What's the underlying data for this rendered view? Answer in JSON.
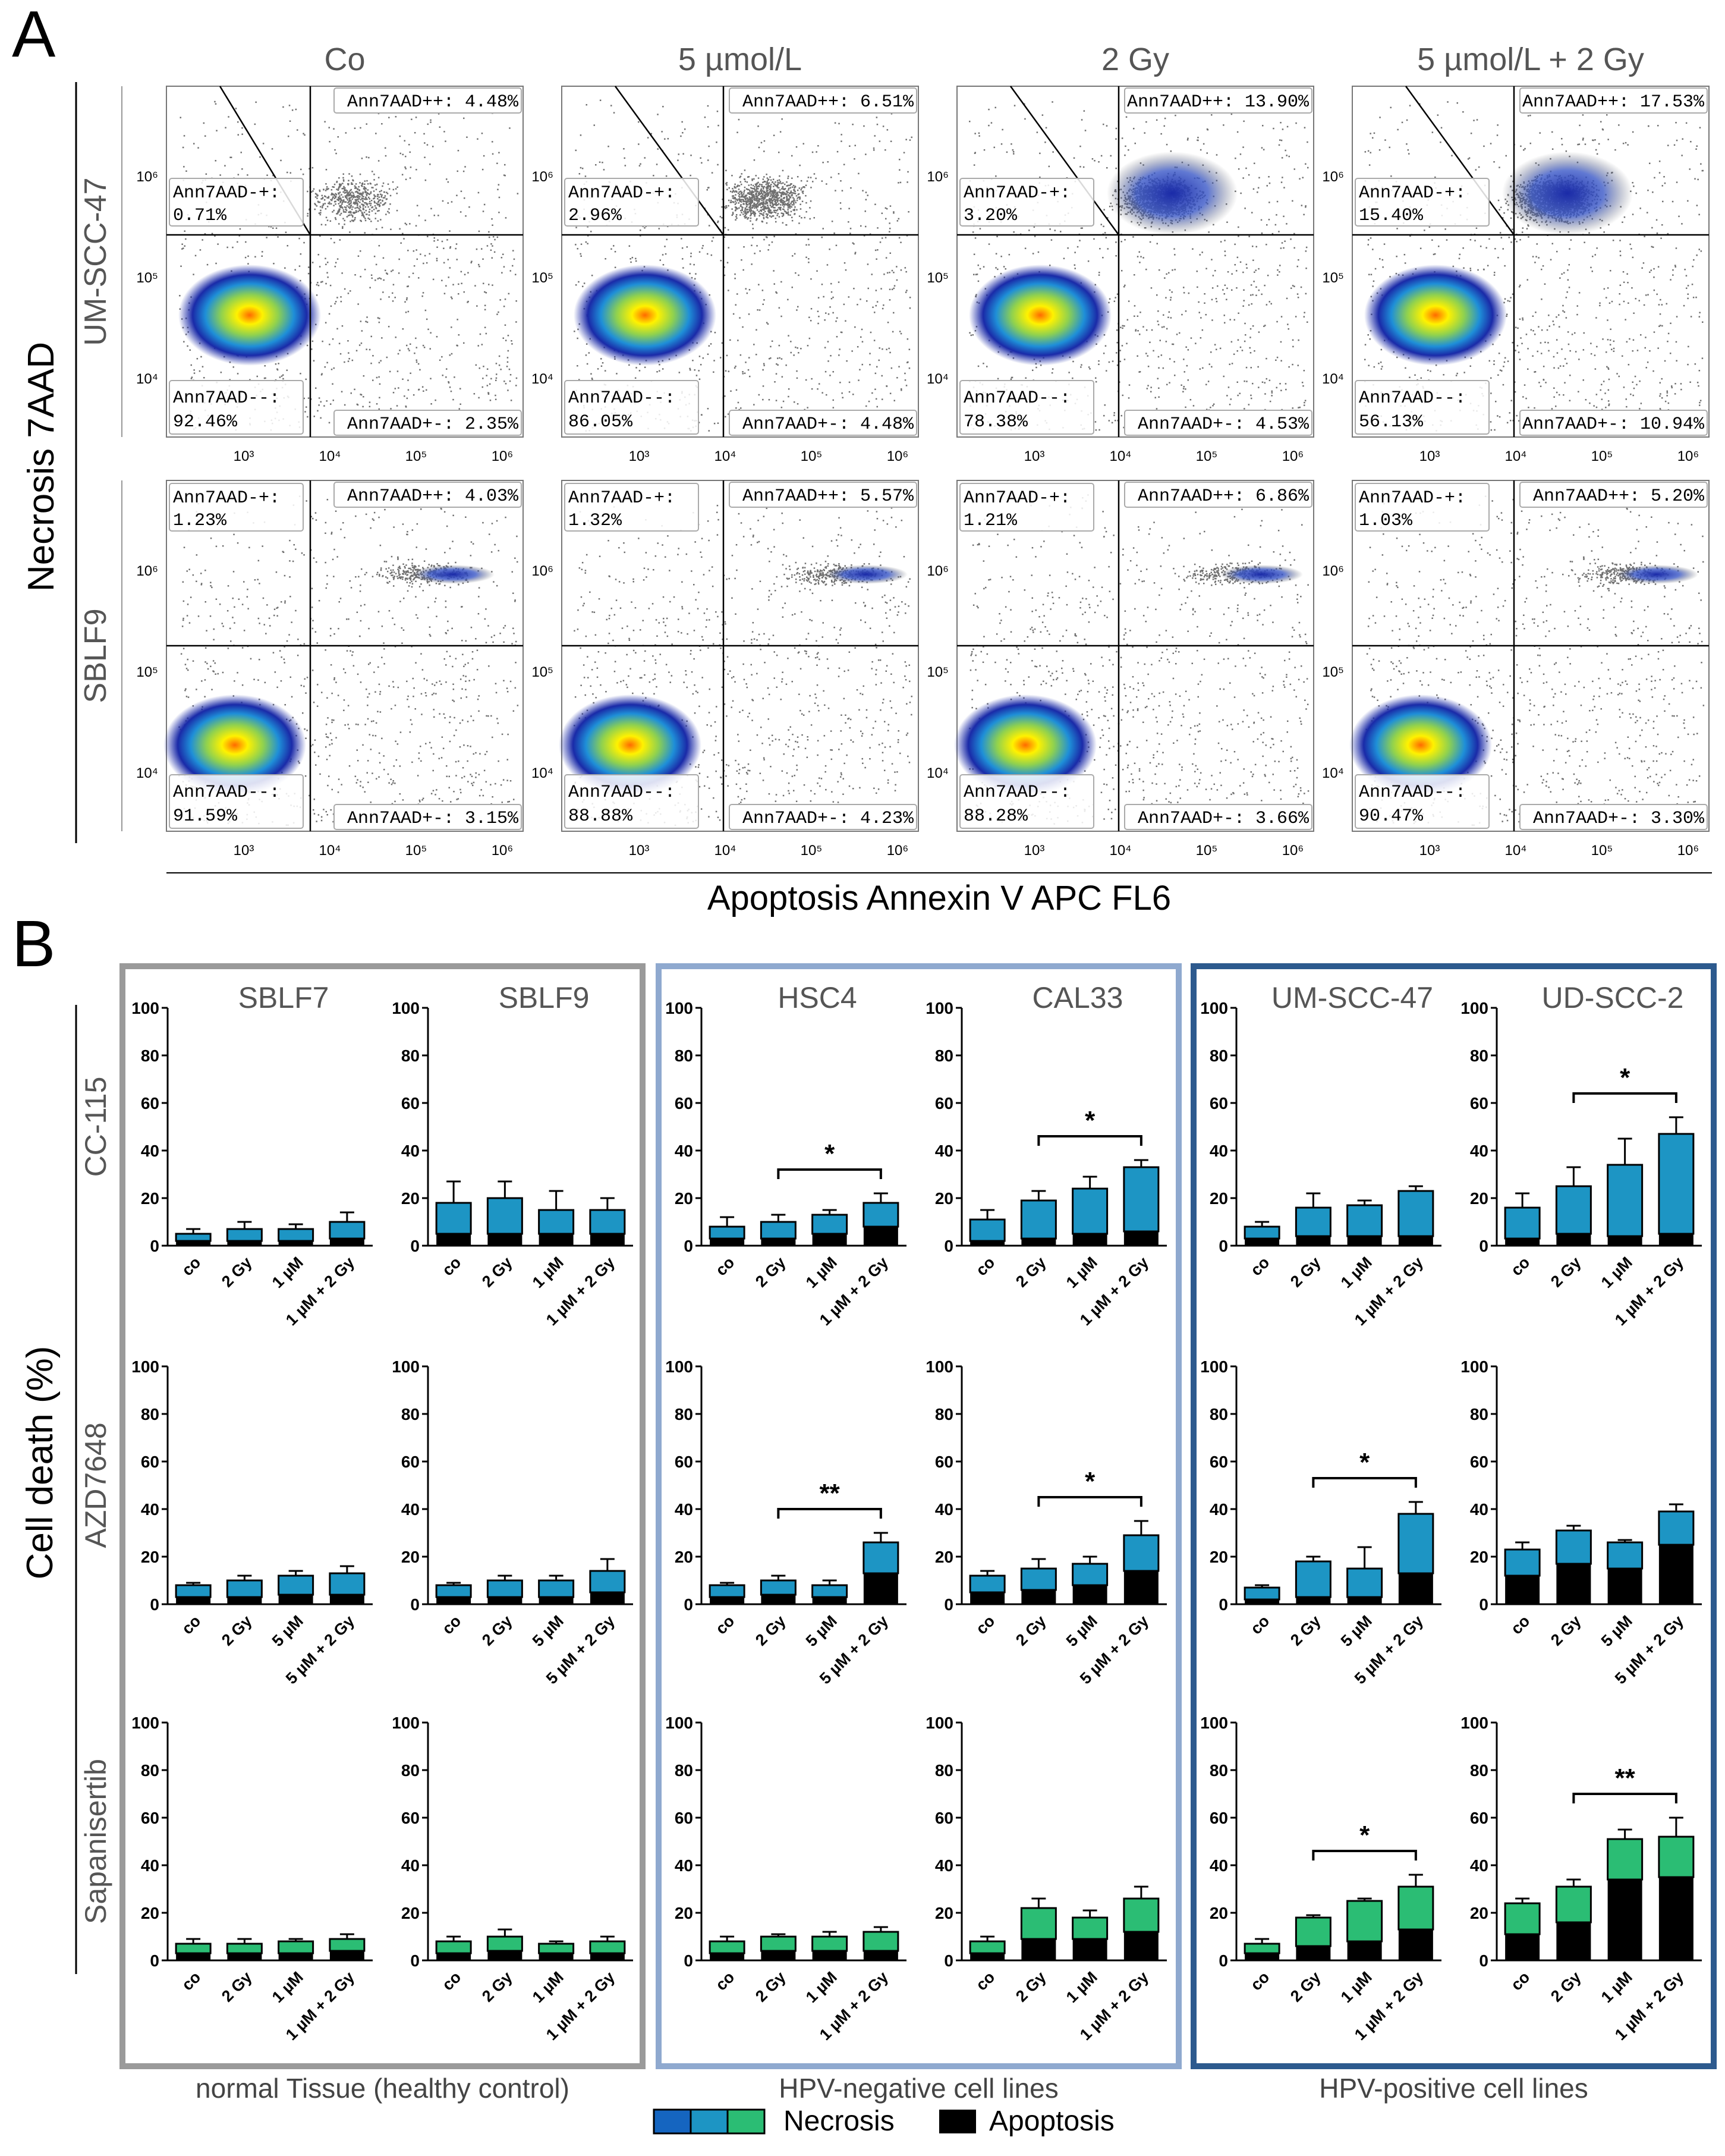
{
  "panel_a": {
    "label": "A",
    "y_axis_label": "Necrosis 7AAD",
    "x_axis_label": "Apoptosis Annexin V APC FL6",
    "conditions": [
      "Co",
      "5 µmol/L",
      "2 Gy",
      "5 µmol/L + 2 Gy"
    ],
    "y_ticks": [
      "10⁴",
      "10⁵",
      "10⁶"
    ],
    "x_ticks": [
      "10³",
      "10⁴",
      "10⁵",
      "10⁶"
    ],
    "rows": [
      {
        "cell_line": "UM-SCC-47",
        "plots": [
          {
            "q_dn_label": "Ann7AAD--:",
            "q_dn_value": "92.46%",
            "q_up_label": "Ann7AAD-+:",
            "q_up_value": "0.71%",
            "q_pp": "Ann7AAD++: 4.48%",
            "q_pm": "Ann7AAD+-: 2.35%"
          },
          {
            "q_dn_label": "Ann7AAD--:",
            "q_dn_value": "86.05%",
            "q_up_label": "Ann7AAD-+:",
            "q_up_value": "2.96%",
            "q_pp": "Ann7AAD++: 6.51%",
            "q_pm": "Ann7AAD+-: 4.48%"
          },
          {
            "q_dn_label": "Ann7AAD--:",
            "q_dn_value": "78.38%",
            "q_up_label": "Ann7AAD-+:",
            "q_up_value": "3.20%",
            "q_pp": "Ann7AAD++: 13.90%",
            "q_pm": "Ann7AAD+-: 4.53%"
          },
          {
            "q_dn_label": "Ann7AAD--:",
            "q_dn_value": "56.13%",
            "q_up_label": "Ann7AAD-+:",
            "q_up_value": "15.40%",
            "q_pp": "Ann7AAD++: 17.53%",
            "q_pm": "Ann7AAD+-: 10.94%"
          }
        ]
      },
      {
        "cell_line": "SBLF9",
        "plots": [
          {
            "q_dn_label": "Ann7AAD--:",
            "q_dn_value": "91.59%",
            "q_up_label": "Ann7AAD-+:",
            "q_up_value": "1.23%",
            "q_pp": "Ann7AAD++: 4.03%",
            "q_pm": "Ann7AAD+-: 3.15%"
          },
          {
            "q_dn_label": "Ann7AAD--:",
            "q_dn_value": "88.88%",
            "q_up_label": "Ann7AAD-+:",
            "q_up_value": "1.32%",
            "q_pp": "Ann7AAD++: 5.57%",
            "q_pm": "Ann7AAD+-: 4.23%"
          },
          {
            "q_dn_label": "Ann7AAD--:",
            "q_dn_value": "88.28%",
            "q_up_label": "Ann7AAD-+:",
            "q_up_value": "1.21%",
            "q_pp": "Ann7AAD++: 6.86%",
            "q_pm": "Ann7AAD+-: 3.66%"
          },
          {
            "q_dn_label": "Ann7AAD--:",
            "q_dn_value": "90.47%",
            "q_up_label": "Ann7AAD-+:",
            "q_up_value": "1.03%",
            "q_pp": "Ann7AAD++: 5.20%",
            "q_pm": "Ann7AAD+-: 3.30%"
          }
        ]
      }
    ]
  },
  "panel_b": {
    "label": "B",
    "y_axis_label": "Cell death (%)",
    "cell_lines": [
      "SBLF7",
      "SBLF9",
      "HSC4",
      "CAL33",
      "UM-SCC-47",
      "UD-SCC-2"
    ],
    "group_labels": [
      "normal Tissue (healthy control)",
      "HPV-negative cell lines",
      "HPV-positive cell lines"
    ],
    "group_colors": [
      "#9a9a9a",
      "#8fa9cf",
      "#2d5a8e"
    ],
    "inhibitors": [
      "CC-115",
      "AZD7648",
      "Sapanisertib"
    ],
    "inhibitor_colors": [
      "#1d95c4",
      "#1d95c4",
      "#2bbd74"
    ],
    "y_ticks": [
      "0",
      "20",
      "40",
      "60",
      "80",
      "100"
    ],
    "legend": {
      "necrosis_label": "Necrosis",
      "apoptosis_label": "Apoptosis",
      "necrosis_colors": [
        "#1565c0",
        "#1d95c4",
        "#2bbd74"
      ],
      "apoptosis_color": "#000000"
    }
  },
  "chart_data": [
    {
      "type": "bar",
      "stacked": true,
      "title": "CC-115",
      "ylabel": "Cell death (%)",
      "ylim": [
        0,
        100
      ],
      "categories": [
        "co",
        "2 Gy",
        "1 µM",
        "1 µM + 2 Gy"
      ],
      "panels": [
        {
          "cell_line": "SBLF7",
          "apoptosis": [
            2,
            2,
            2,
            3
          ],
          "total": [
            5,
            7,
            7,
            10
          ],
          "error": [
            2,
            3,
            2,
            4
          ],
          "significance": null
        },
        {
          "cell_line": "SBLF9",
          "apoptosis": [
            5,
            5,
            5,
            5
          ],
          "total": [
            18,
            20,
            15,
            15
          ],
          "error": [
            9,
            7,
            8,
            5
          ],
          "significance": null
        },
        {
          "cell_line": "HSC4",
          "apoptosis": [
            3,
            3,
            5,
            8
          ],
          "total": [
            8,
            10,
            13,
            18
          ],
          "error": [
            4,
            3,
            2,
            4
          ],
          "significance": {
            "from": 1,
            "to": 3,
            "label": "*"
          }
        },
        {
          "cell_line": "CAL33",
          "apoptosis": [
            2,
            3,
            5,
            6
          ],
          "total": [
            11,
            19,
            24,
            33
          ],
          "error": [
            4,
            4,
            5,
            3
          ],
          "significance": {
            "from": 1,
            "to": 3,
            "label": "*"
          }
        },
        {
          "cell_line": "UM-SCC-47",
          "apoptosis": [
            3,
            4,
            4,
            4
          ],
          "total": [
            8,
            16,
            17,
            23
          ],
          "error": [
            2,
            6,
            2,
            2
          ],
          "significance": null
        },
        {
          "cell_line": "UD-SCC-2",
          "apoptosis": [
            3,
            5,
            4,
            5
          ],
          "total": [
            16,
            25,
            34,
            47
          ],
          "error": [
            6,
            8,
            11,
            7
          ],
          "significance": {
            "from": 1,
            "to": 3,
            "label": "*"
          }
        }
      ]
    },
    {
      "type": "bar",
      "stacked": true,
      "title": "AZD7648",
      "ylabel": "Cell death (%)",
      "ylim": [
        0,
        100
      ],
      "categories": [
        "co",
        "2 Gy",
        "5 µM",
        "5 µM + 2 Gy"
      ],
      "panels": [
        {
          "cell_line": "SBLF7",
          "apoptosis": [
            3,
            3,
            4,
            4
          ],
          "total": [
            8,
            10,
            12,
            13
          ],
          "error": [
            1,
            2,
            2,
            3
          ],
          "significance": null
        },
        {
          "cell_line": "SBLF9",
          "apoptosis": [
            3,
            3,
            3,
            5
          ],
          "total": [
            8,
            10,
            10,
            14
          ],
          "error": [
            1,
            2,
            2,
            5
          ],
          "significance": null
        },
        {
          "cell_line": "HSC4",
          "apoptosis": [
            3,
            4,
            3,
            13
          ],
          "total": [
            8,
            10,
            8,
            26
          ],
          "error": [
            1,
            2,
            2,
            4
          ],
          "significance": {
            "from": 1,
            "to": 3,
            "label": "**"
          }
        },
        {
          "cell_line": "CAL33",
          "apoptosis": [
            5,
            6,
            8,
            14
          ],
          "total": [
            12,
            15,
            17,
            29
          ],
          "error": [
            2,
            4,
            3,
            6
          ],
          "significance": {
            "from": 1,
            "to": 3,
            "label": "*"
          }
        },
        {
          "cell_line": "UM-SCC-47",
          "apoptosis": [
            2,
            3,
            3,
            13
          ],
          "total": [
            7,
            18,
            15,
            38
          ],
          "error": [
            1,
            2,
            9,
            5
          ],
          "significance": {
            "from": 1,
            "to": 3,
            "label": "*"
          }
        },
        {
          "cell_line": "UD-SCC-2",
          "apoptosis": [
            12,
            17,
            15,
            25
          ],
          "total": [
            23,
            31,
            26,
            39
          ],
          "error": [
            3,
            2,
            1,
            3
          ],
          "significance": null
        }
      ]
    },
    {
      "type": "bar",
      "stacked": true,
      "title": "Sapanisertib",
      "ylabel": "Cell death (%)",
      "ylim": [
        0,
        100
      ],
      "categories": [
        "co",
        "2 Gy",
        "1 µM",
        "1 µM + 2 Gy"
      ],
      "panels": [
        {
          "cell_line": "SBLF7",
          "apoptosis": [
            3,
            3,
            3,
            4
          ],
          "total": [
            7,
            7,
            8,
            9
          ],
          "error": [
            2,
            2,
            1,
            2
          ],
          "significance": null
        },
        {
          "cell_line": "SBLF9",
          "apoptosis": [
            3,
            4,
            3,
            3
          ],
          "total": [
            8,
            10,
            7,
            8
          ],
          "error": [
            2,
            3,
            1,
            2
          ],
          "significance": null
        },
        {
          "cell_line": "HSC4",
          "apoptosis": [
            3,
            4,
            4,
            4
          ],
          "total": [
            8,
            10,
            10,
            12
          ],
          "error": [
            2,
            1,
            2,
            2
          ],
          "significance": null
        },
        {
          "cell_line": "CAL33",
          "apoptosis": [
            3,
            9,
            9,
            12
          ],
          "total": [
            8,
            22,
            18,
            26
          ],
          "error": [
            2,
            4,
            3,
            5
          ],
          "significance": null
        },
        {
          "cell_line": "UM-SCC-47",
          "apoptosis": [
            3,
            6,
            8,
            13
          ],
          "total": [
            7,
            18,
            25,
            31
          ],
          "error": [
            2,
            1,
            1,
            5
          ],
          "significance": {
            "from": 1,
            "to": 3,
            "label": "*"
          }
        },
        {
          "cell_line": "UD-SCC-2",
          "apoptosis": [
            11,
            16,
            34,
            35
          ],
          "total": [
            24,
            31,
            51,
            52
          ],
          "error": [
            2,
            3,
            4,
            8
          ],
          "significance": {
            "from": 1,
            "to": 3,
            "label": "**"
          }
        }
      ]
    }
  ]
}
